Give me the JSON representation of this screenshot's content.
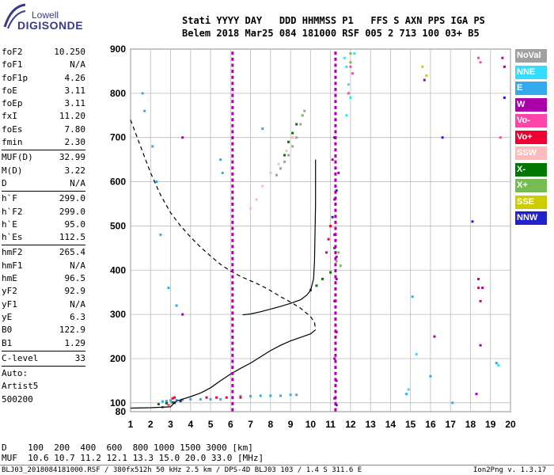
{
  "logo": {
    "line1": "Lowell",
    "line2": "DIGISONDE"
  },
  "header": {
    "row1": "Stati YYYY DAY   DDD HHMMSS P1   FFS S AXN PPS IGA PS",
    "row2": "Belem 2018 Mar25 084 181000 RSF 005 2 713 100 03+ B5"
  },
  "params": {
    "group1": [
      {
        "name": "foF2",
        "value": "10.250"
      },
      {
        "name": "foF1",
        "value": "N/A"
      },
      {
        "name": "foF1p",
        "value": "4.26"
      },
      {
        "name": "foE",
        "value": "3.11"
      },
      {
        "name": "foEp",
        "value": "3.11"
      },
      {
        "name": "fxI",
        "value": "11.20"
      },
      {
        "name": "foEs",
        "value": "7.80"
      },
      {
        "name": "fmin",
        "value": "2.30"
      }
    ],
    "group2": [
      {
        "name": "MUF(D)",
        "value": "32.99"
      },
      {
        "name": "M(D)",
        "value": "3.22"
      },
      {
        "name": "D",
        "value": "N/A"
      }
    ],
    "group3": [
      {
        "name": "h`F",
        "value": "299.0"
      },
      {
        "name": "h`F2",
        "value": "299.0"
      },
      {
        "name": "h`E",
        "value": "95.0"
      },
      {
        "name": "h`Es",
        "value": "112.5"
      }
    ],
    "group4": [
      {
        "name": "hmF2",
        "value": "265.4"
      },
      {
        "name": "hmF1",
        "value": "N/A"
      },
      {
        "name": "hmE",
        "value": "96.5"
      },
      {
        "name": "yF2",
        "value": "92.9"
      },
      {
        "name": "yF1",
        "value": "N/A"
      },
      {
        "name": "yE",
        "value": "6.3"
      },
      {
        "name": "B0",
        "value": "122.9"
      },
      {
        "name": "B1",
        "value": "1.29"
      }
    ],
    "group5": [
      {
        "name": "C-level",
        "value": "33"
      }
    ],
    "autoscaling": {
      "line1": "Auto:",
      "line2": "Artist5",
      "line3": "500200"
    }
  },
  "legend": [
    {
      "label": "NoVal",
      "color": "#a0a0a0"
    },
    {
      "label": "NNE",
      "color": "#33ddff"
    },
    {
      "label": "E",
      "color": "#33aaee"
    },
    {
      "label": "W",
      "color": "#aa00aa"
    },
    {
      "label": "Vo-",
      "color": "#ff44aa"
    },
    {
      "label": "Vo+",
      "color": "#ee0033"
    },
    {
      "label": "SSW",
      "color": "#ffbbbb"
    },
    {
      "label": "X-",
      "color": "#007700"
    },
    {
      "label": "X+",
      "color": "#77bb55"
    },
    {
      "label": "SSE",
      "color": "#cccc00"
    },
    {
      "label": "NNW",
      "color": "#2222cc"
    }
  ],
  "footer": {
    "d_row": "D    100  200  400  600  800 1000 1500 3000 [km]",
    "muf_row": "MUF  10.6 10.7 11.2 12.1 13.3 15.0 20.0 33.0 [MHz]",
    "file_info": "BLJ03_2018084181000.RSF / 380fx512h 50 kHz 2.5 km / DPS-4D BLJ03 103 / 1.4 S 311.6 E",
    "version": "Ion2Png v. 1.3.17"
  },
  "chart_data": {
    "type": "scatter",
    "xlim": [
      1,
      20
    ],
    "ylim": [
      80,
      900
    ],
    "xticks": [
      "1",
      "2",
      "3",
      "4",
      "5",
      "6",
      "7",
      "8",
      "9",
      "10",
      "11",
      "12",
      "13",
      "14",
      "15",
      "16",
      "17",
      "18",
      "19",
      "20"
    ],
    "yticks": [
      "80",
      "100",
      "200",
      "300",
      "400",
      "500",
      "600",
      "700",
      "800",
      "900"
    ],
    "grid": true,
    "series": [
      {
        "name": "E",
        "color": "#33aaee",
        "kind": "points",
        "points": [
          [
            2.6,
            103
          ],
          [
            2.8,
            104
          ],
          [
            3.0,
            105
          ],
          [
            3.3,
            106
          ],
          [
            3.6,
            107
          ],
          [
            4.0,
            108
          ],
          [
            4.5,
            108
          ],
          [
            5.0,
            108
          ],
          [
            5.5,
            108
          ],
          [
            6.5,
            115
          ],
          [
            7.0,
            115
          ],
          [
            7.5,
            116
          ],
          [
            8.0,
            116
          ],
          [
            8.5,
            116
          ],
          [
            9.0,
            118
          ],
          [
            9.3,
            118
          ],
          [
            1.6,
            800
          ],
          [
            1.7,
            760
          ],
          [
            2.1,
            680
          ],
          [
            2.3,
            600
          ],
          [
            2.5,
            480
          ],
          [
            2.9,
            360
          ],
          [
            3.3,
            320
          ],
          [
            5.5,
            650
          ],
          [
            5.6,
            620
          ],
          [
            7.6,
            720
          ],
          [
            14.8,
            120
          ],
          [
            15.1,
            340
          ],
          [
            16.0,
            160
          ],
          [
            17.1,
            100
          ],
          [
            19.3,
            190
          ]
        ]
      },
      {
        "name": "NNE",
        "color": "#33ddff",
        "kind": "points",
        "points": [
          [
            11.7,
            880
          ],
          [
            11.8,
            860
          ],
          [
            11.9,
            820
          ],
          [
            12.0,
            790
          ],
          [
            11.8,
            750
          ],
          [
            15.3,
            210
          ],
          [
            14.9,
            130
          ],
          [
            19.4,
            185
          ],
          [
            12.2,
            890
          ]
        ]
      },
      {
        "name": "W",
        "color": "#aa00aa",
        "kind": "points",
        "points": [
          [
            11.2,
            480
          ],
          [
            11.3,
            430
          ],
          [
            11.3,
            380
          ],
          [
            11.2,
            330
          ],
          [
            11.3,
            260
          ],
          [
            11.2,
            200
          ],
          [
            11.3,
            150
          ],
          [
            11.2,
            110
          ],
          [
            11.1,
            650
          ],
          [
            11.2,
            560
          ],
          [
            11.4,
            620
          ],
          [
            15.7,
            830
          ],
          [
            16.2,
            250
          ],
          [
            18.4,
            380
          ],
          [
            18.6,
            360
          ],
          [
            18.5,
            230
          ],
          [
            18.3,
            120
          ],
          [
            19.6,
            880
          ],
          [
            19.7,
            860
          ],
          [
            3.6,
            700
          ],
          [
            3.6,
            300
          ]
        ]
      },
      {
        "name": "Vo-",
        "color": "#ff44aa",
        "kind": "points",
        "points": [
          [
            12.0,
            860
          ],
          [
            12.1,
            845
          ],
          [
            11.9,
            800
          ],
          [
            18.4,
            880
          ],
          [
            18.5,
            870
          ],
          [
            19.5,
            700
          ],
          [
            2.6,
            90
          ],
          [
            2.9,
            95
          ]
        ]
      },
      {
        "name": "Vo+",
        "color": "#ee0033",
        "kind": "points",
        "points": [
          [
            3.1,
            110
          ],
          [
            3.2,
            112
          ],
          [
            4.8,
            112
          ],
          [
            5.3,
            112
          ],
          [
            5.8,
            112
          ],
          [
            6.5,
            112
          ],
          [
            10.8,
            440
          ],
          [
            10.9,
            470
          ],
          [
            11.0,
            500
          ],
          [
            18.4,
            360
          ],
          [
            18.5,
            330
          ]
        ]
      },
      {
        "name": "X-",
        "color": "#007700",
        "kind": "points",
        "points": [
          [
            2.4,
            97
          ],
          [
            2.8,
            99
          ],
          [
            3.1,
            101
          ],
          [
            10.0,
            355
          ],
          [
            10.3,
            365
          ],
          [
            10.6,
            380
          ],
          [
            11.0,
            395
          ],
          [
            11.2,
            450
          ],
          [
            8.7,
            660
          ],
          [
            8.9,
            690
          ],
          [
            9.1,
            710
          ],
          [
            9.3,
            730
          ]
        ]
      },
      {
        "name": "X+",
        "color": "#77bb55",
        "kind": "points",
        "points": [
          [
            11.3,
            420
          ],
          [
            11.4,
            440
          ],
          [
            11.5,
            410
          ],
          [
            12.0,
            890
          ],
          [
            12.0,
            870
          ],
          [
            9.6,
            750
          ]
        ]
      },
      {
        "name": "SSE",
        "color": "#cccc00",
        "kind": "points",
        "points": [
          [
            15.6,
            860
          ],
          [
            15.8,
            840
          ]
        ]
      },
      {
        "name": "NNW",
        "color": "#2222cc",
        "kind": "points",
        "points": [
          [
            11.2,
            700
          ],
          [
            11.3,
            580
          ],
          [
            11.1,
            520
          ],
          [
            16.6,
            700
          ],
          [
            18.1,
            510
          ],
          [
            19.7,
            790
          ],
          [
            3.2,
            100
          ],
          [
            3.5,
            104
          ],
          [
            11.3,
            95
          ]
        ]
      },
      {
        "name": "SSW",
        "color": "#ffbbbb",
        "kind": "points",
        "points": [
          [
            7.0,
            540
          ],
          [
            7.3,
            560
          ],
          [
            7.6,
            590
          ],
          [
            8.0,
            620
          ],
          [
            8.4,
            640
          ],
          [
            8.8,
            670
          ],
          [
            9.1,
            700
          ]
        ]
      },
      {
        "name": "NoVal",
        "color": "#a0a0a0",
        "kind": "points",
        "points": [
          [
            8.3,
            615
          ],
          [
            8.5,
            630
          ],
          [
            8.7,
            645
          ],
          [
            8.9,
            660
          ],
          [
            9.1,
            680
          ],
          [
            9.3,
            700
          ],
          [
            9.5,
            730
          ],
          [
            9.7,
            760
          ]
        ]
      },
      {
        "name": "profile",
        "color": "#000000",
        "kind": "line",
        "points": [
          [
            1.0,
            88
          ],
          [
            2.0,
            89
          ],
          [
            3.0,
            91
          ],
          [
            3.1,
            96
          ],
          [
            3.3,
            104
          ],
          [
            4.0,
            114
          ],
          [
            4.5,
            122
          ],
          [
            5.0,
            134
          ],
          [
            5.5,
            150
          ],
          [
            6.0,
            165
          ],
          [
            6.5,
            178
          ],
          [
            7.0,
            190
          ],
          [
            7.5,
            204
          ],
          [
            8.0,
            218
          ],
          [
            8.5,
            230
          ],
          [
            9.0,
            240
          ],
          [
            9.5,
            248
          ],
          [
            10.0,
            256
          ],
          [
            10.25,
            265
          ]
        ]
      },
      {
        "name": "trace",
        "color": "#000000",
        "kind": "line",
        "points": [
          [
            6.6,
            299
          ],
          [
            7.0,
            301
          ],
          [
            7.5,
            306
          ],
          [
            8.0,
            312
          ],
          [
            8.5,
            318
          ],
          [
            9.0,
            325
          ],
          [
            9.5,
            333
          ],
          [
            9.8,
            343
          ],
          [
            10.0,
            354
          ],
          [
            10.15,
            380
          ],
          [
            10.2,
            420
          ],
          [
            10.22,
            470
          ],
          [
            10.25,
            550
          ],
          [
            10.25,
            650
          ]
        ]
      },
      {
        "name": "model",
        "color": "#000000",
        "kind": "dashed",
        "points": [
          [
            1.0,
            740
          ],
          [
            1.5,
            680
          ],
          [
            2.0,
            620
          ],
          [
            2.5,
            570
          ],
          [
            3.0,
            530
          ],
          [
            3.5,
            500
          ],
          [
            4.0,
            475
          ],
          [
            4.5,
            452
          ],
          [
            5.0,
            432
          ],
          [
            5.5,
            413
          ],
          [
            6.0,
            398
          ],
          [
            6.5,
            386
          ],
          [
            7.0,
            376
          ],
          [
            7.5,
            366
          ],
          [
            8.0,
            354
          ],
          [
            8.5,
            340
          ],
          [
            9.0,
            328
          ],
          [
            9.5,
            314
          ],
          [
            10.0,
            295
          ],
          [
            10.2,
            282
          ],
          [
            10.25,
            265
          ]
        ]
      },
      {
        "name": "vline-6.1",
        "color": "#aa00aa",
        "kind": "vband",
        "x": 6.1,
        "from": 80,
        "to": 900
      },
      {
        "name": "vline-11.2",
        "color": "#aa00aa",
        "kind": "vband",
        "x": 11.25,
        "from": 80,
        "to": 900
      }
    ]
  }
}
